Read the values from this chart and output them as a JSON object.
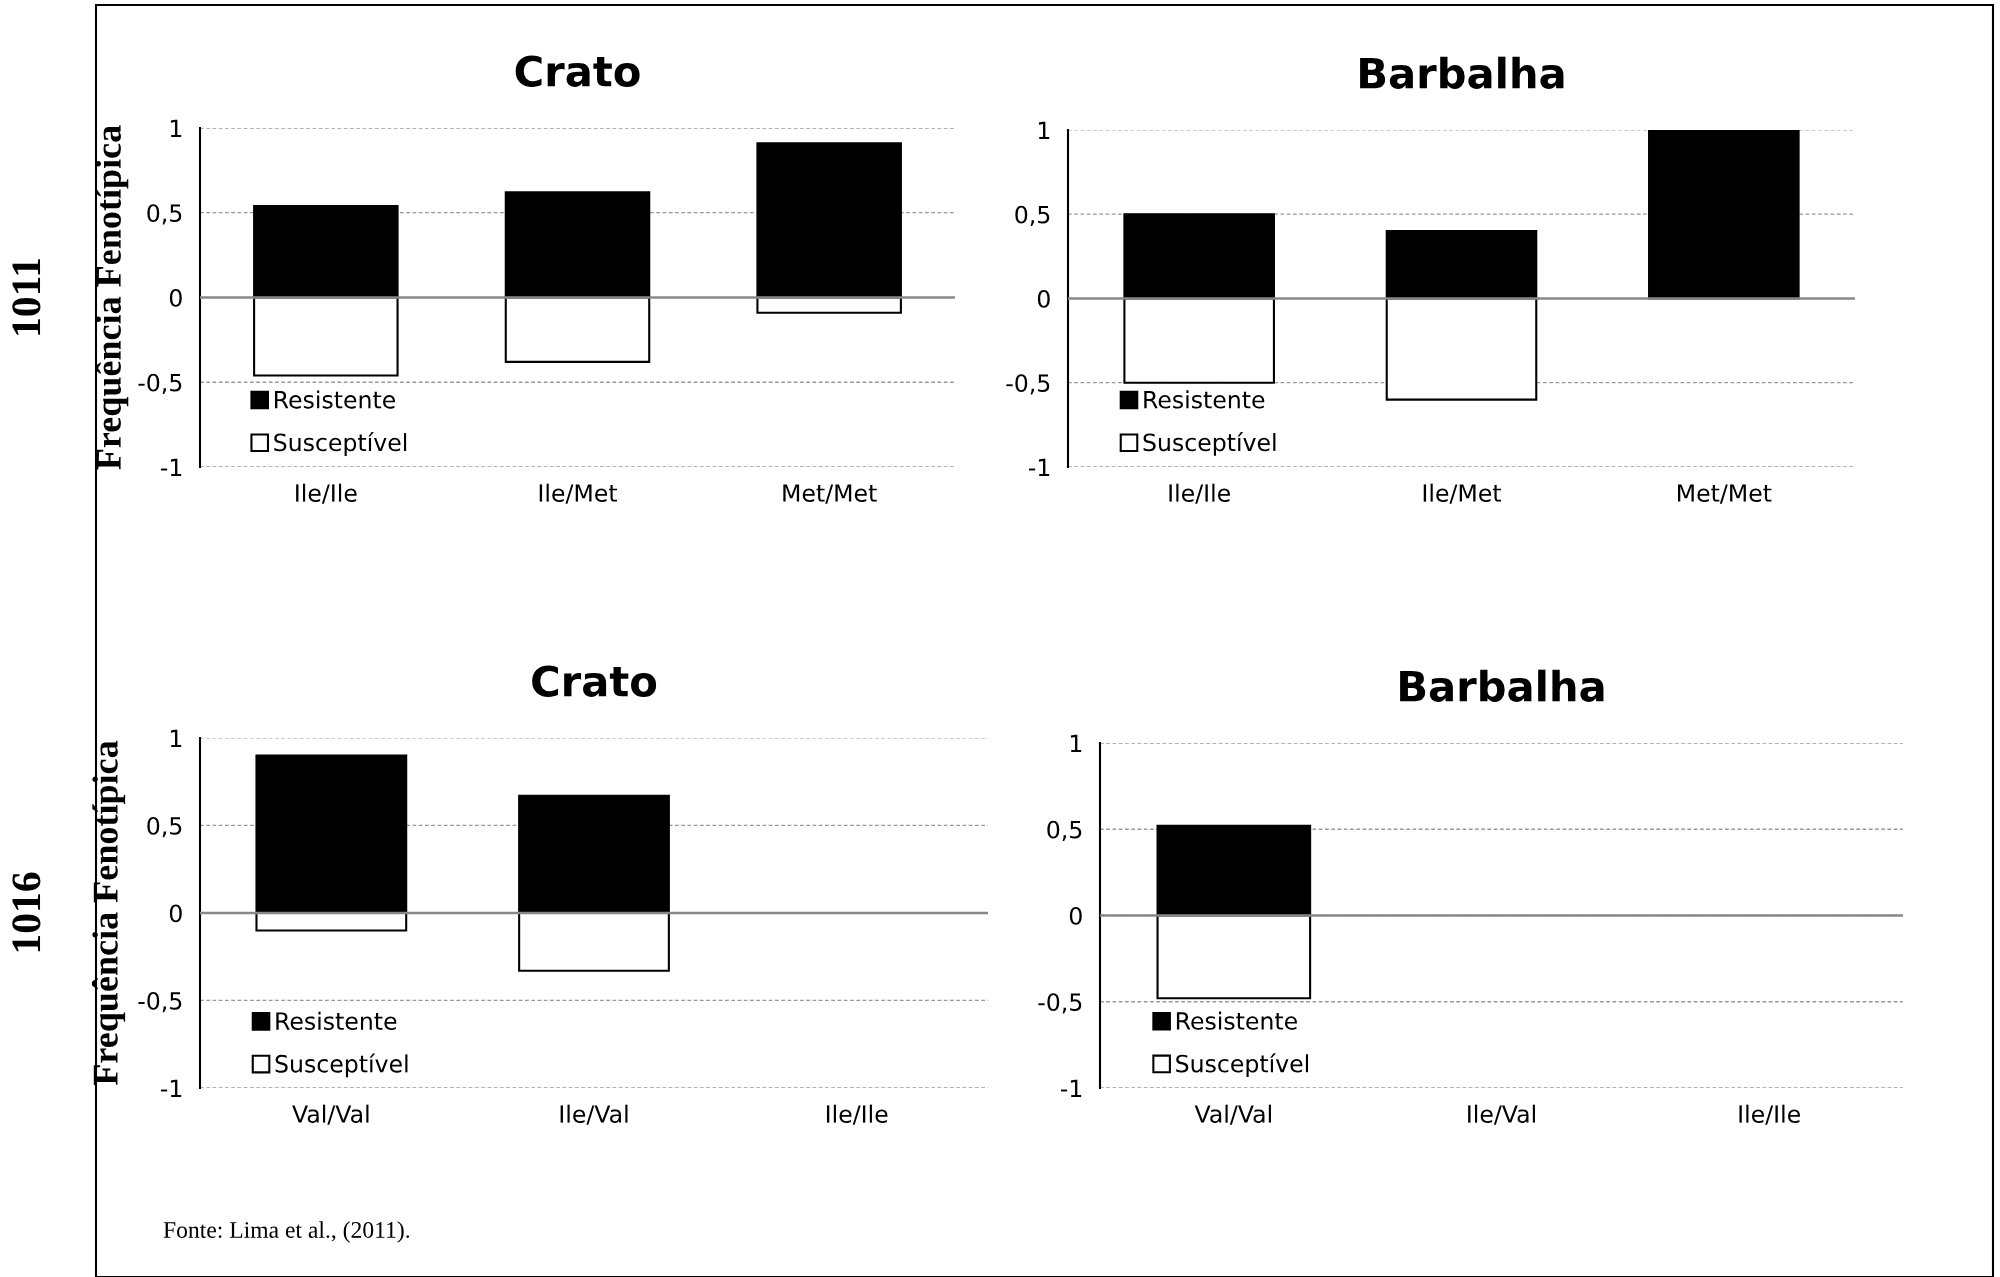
{
  "chart_data": [
    {
      "type": "bar",
      "title": "Crato",
      "ylabel": "Frequência Fenotípica",
      "annotations": [
        "1011"
      ],
      "categories": [
        "Ile/Ile",
        "Ile/Met",
        "Met/Met"
      ],
      "stacked": true,
      "ylim": [
        -1,
        1
      ],
      "yticks": [
        {
          "value": -1,
          "label": "-1"
        },
        {
          "value": -0.5,
          "label": "-0,5"
        },
        0,
        {
          "value": 0.5,
          "label": "0,5"
        },
        1
      ],
      "grid": "y",
      "legend": "bottom left",
      "series": [
        {
          "name": "Resistente",
          "color": "#000000",
          "values": [
            0.54,
            0.62,
            0.91
          ]
        },
        {
          "name": "Susceptível",
          "color": "#ffffff",
          "values": [
            -0.46,
            -0.38,
            -0.09
          ]
        }
      ]
    },
    {
      "type": "bar",
      "title": "Barbalha",
      "categories": [
        "Ile/Ile",
        "Ile/Met",
        "Met/Met"
      ],
      "stacked": true,
      "ylim": [
        -1,
        1
      ],
      "yticks": [
        {
          "value": -1,
          "label": "-1"
        },
        {
          "value": -0.5,
          "label": "-0,5"
        },
        0,
        {
          "value": 0.5,
          "label": "0,5"
        },
        1
      ],
      "grid": "y",
      "legend": "bottom left",
      "series": [
        {
          "name": "Resistente",
          "color": "#000000",
          "values": [
            0.5,
            0.4,
            1
          ]
        },
        {
          "name": "Susceptível",
          "color": "#ffffff",
          "values": [
            -0.5,
            -0.6,
            0
          ]
        }
      ]
    },
    {
      "type": "bar",
      "title": "Crato",
      "ylabel": "Frequência Fenotípica",
      "annotations": [
        "1016",
        "Fonte: Lima et al., (2011)."
      ],
      "categories": [
        "Val/Val",
        "Ile/Val",
        "Ile/Ile"
      ],
      "stacked": true,
      "ylim": [
        -1,
        1
      ],
      "yticks": [
        {
          "value": -1,
          "label": "-1"
        },
        {
          "value": -0.5,
          "label": "-0,5"
        },
        0,
        {
          "value": 0.5,
          "label": "0,5"
        },
        1
      ],
      "grid": "y",
      "legend": "bottom left",
      "series": [
        {
          "name": "Resistente",
          "color": "#000000",
          "values": [
            0.9,
            0.67,
            0
          ]
        },
        {
          "name": "Susceptível",
          "color": "#ffffff",
          "values": [
            -0.1,
            -0.33,
            0
          ]
        }
      ]
    },
    {
      "type": "bar",
      "title": "Barbalha",
      "categories": [
        "Val/Val",
        "Ile/Val",
        "Ile/Ile"
      ],
      "stacked": true,
      "ylim": [
        -1,
        1
      ],
      "yticks": [
        {
          "value": -1,
          "label": "-1"
        },
        {
          "value": -0.5,
          "label": "-0,5"
        },
        0,
        {
          "value": 0.5,
          "label": "0,5"
        },
        1
      ],
      "grid": "y",
      "legend": "bottom left",
      "series": [
        {
          "name": "Resistente",
          "color": "#000000",
          "values": [
            0.52,
            0,
            0
          ]
        },
        {
          "name": "Susceptível",
          "color": "#ffffff",
          "values": [
            -0.48,
            0,
            0
          ]
        }
      ]
    }
  ]
}
